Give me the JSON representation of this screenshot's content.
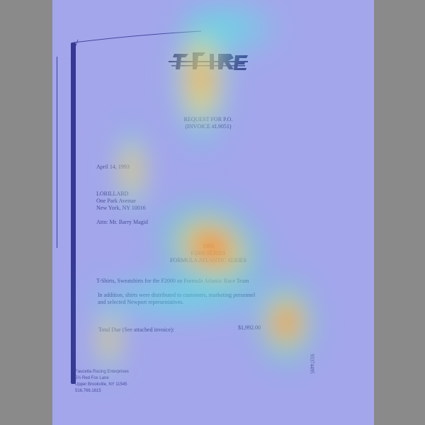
{
  "document": {
    "logo_text": "Fire",
    "title_line1": "REQUEST FOR P.O.",
    "title_line2": "(INVOICE #L9051)",
    "date": "April 14, 1993",
    "addressee": {
      "company": "LORILLARD",
      "street": "One Park Avenue",
      "city": "New York, NY  10016"
    },
    "attention": "Attn:   Mr. Barry Magid",
    "series_year": "1993",
    "series_name1": "F2000 SERIES",
    "series_name2": "FORMULA ATLANTIC SERIES",
    "line_items": "T-Shirts, Sweatshirts for the F2000 an Formula Atlantic Race Team",
    "note_line1": "In addition, shirts were distributed to customers, marketing personnel",
    "note_line2": "and selected Newport representatives.",
    "total_label": "Total Due (See attached invoice):",
    "total_amount": "$1,992.00",
    "document_number": "93374495",
    "sender": {
      "name": "Faucetta Racing Enterprises",
      "street": "5½ Red Fox Lane",
      "city": "Upper Brookville, NY 11545",
      "phone": "516.766.1615"
    }
  },
  "colors": {
    "page_background": "#8a8a8a",
    "paper": "#fdfdf8",
    "ink": "#2b2b3a",
    "heatmap_base": "#6f74e6",
    "heatmap_hot": "#ff2a1a"
  }
}
